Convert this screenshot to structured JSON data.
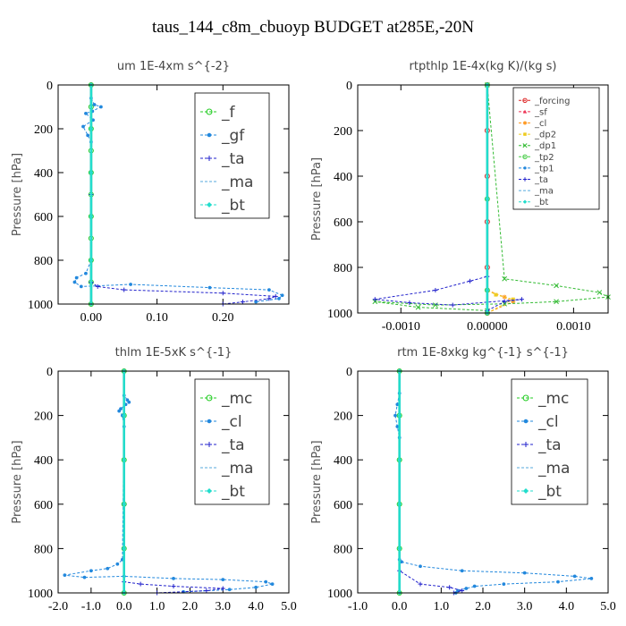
{
  "figure": {
    "title": "taus_144_c8m_cbuoyp  BUDGET at285E,-20N"
  },
  "chart_data": [
    {
      "type": "line",
      "title": "um  1E-4xm s^{-2}",
      "ylabel": "Pressure [hPa]",
      "xlim": [
        -0.05,
        0.3
      ],
      "ylim": [
        0,
        1000
      ],
      "xticks": [
        0.0,
        0.1,
        0.2
      ],
      "xtick_labels": [
        "0.00",
        "0.10",
        "0.20"
      ],
      "yticks": [
        0,
        200,
        400,
        600,
        800,
        1000
      ],
      "ytick_labels": [
        "0",
        "200",
        "400",
        "600",
        "800",
        "1000"
      ],
      "legend_position": "top-right",
      "legend_size": "large",
      "series": [
        {
          "name": "_f",
          "color": "#22cc22",
          "marker": "circle",
          "x": [
            0,
            0,
            0,
            0,
            0,
            0,
            0,
            0,
            0,
            0,
            0
          ],
          "y": [
            0,
            100,
            200,
            300,
            400,
            500,
            600,
            700,
            800,
            900,
            1000
          ]
        },
        {
          "name": "_gf",
          "color": "#2288dd",
          "marker": "dot",
          "x": [
            0,
            0,
            0.005,
            0.015,
            0.002,
            -0.008,
            0.003,
            -0.012,
            -0.005,
            0,
            0,
            0,
            -0.008,
            -0.022,
            -0.025,
            -0.015,
            0.06,
            0.18,
            0.27,
            0.29,
            0.285,
            0.25
          ],
          "y": [
            0,
            60,
            90,
            100,
            120,
            130,
            160,
            190,
            230,
            260,
            400,
            800,
            860,
            880,
            900,
            920,
            910,
            925,
            935,
            960,
            975,
            990
          ]
        },
        {
          "name": "_ta",
          "color": "#2222cc",
          "marker": "plus",
          "x": [
            0,
            0,
            0,
            0.01,
            0.05,
            0.2,
            0.28,
            0.27,
            0.23,
            0.2
          ],
          "y": [
            0,
            500,
            900,
            920,
            935,
            950,
            965,
            975,
            990,
            1000
          ]
        },
        {
          "name": "_ma",
          "color": "#55aadd",
          "marker": "none",
          "x": [
            0,
            0,
            0
          ],
          "y": [
            0,
            500,
            1000
          ]
        },
        {
          "name": "_bt",
          "color": "#22ddcc",
          "marker": "diamond",
          "x": [
            0,
            0,
            0,
            0,
            0,
            0
          ],
          "y": [
            0,
            200,
            400,
            600,
            800,
            1000
          ]
        }
      ]
    },
    {
      "type": "line",
      "title": "rtpthlp  1E-4x(kg K)/(kg s)",
      "ylabel": "Pressure [hPa]",
      "xlim": [
        -0.0015,
        0.0014
      ],
      "ylim": [
        0,
        1000
      ],
      "xticks": [
        -0.001,
        0.0,
        0.001
      ],
      "xtick_labels": [
        "-0.0010",
        "0.00000",
        "0.0010"
      ],
      "yticks": [
        0,
        200,
        400,
        600,
        800,
        1000
      ],
      "ytick_labels": [
        "0",
        "200",
        "400",
        "600",
        "800",
        "1000"
      ],
      "legend_position": "top-right",
      "legend_size": "small",
      "series": [
        {
          "name": "_forcing",
          "color": "#dd2222",
          "marker": "circle",
          "x": [
            0,
            0,
            0,
            0,
            0,
            0
          ],
          "y": [
            0,
            200,
            400,
            600,
            800,
            1000
          ]
        },
        {
          "name": "_sf",
          "color": "#ee3355",
          "marker": "triangle",
          "x": [
            0,
            0,
            0
          ],
          "y": [
            0,
            500,
            1000
          ]
        },
        {
          "name": "_cl",
          "color": "#ff9922",
          "marker": "star",
          "x": [
            0,
            0,
            0.0002,
            0.0003,
            0
          ],
          "y": [
            0,
            900,
            930,
            950,
            1000
          ]
        },
        {
          "name": "_dp2",
          "color": "#eecc22",
          "marker": "square",
          "x": [
            0,
            0,
            0.0001,
            0.0003,
            0
          ],
          "y": [
            0,
            900,
            920,
            940,
            1000
          ]
        },
        {
          "name": "_dp1",
          "color": "#33bb33",
          "marker": "cross",
          "x": [
            0,
            0.0002,
            0.0008,
            0.0013,
            0.0014,
            0.0008,
            0.0002,
            -0.0006,
            -0.0013,
            -0.0008,
            0
          ],
          "y": [
            0,
            850,
            880,
            910,
            930,
            950,
            960,
            965,
            950,
            975,
            990
          ]
        },
        {
          "name": "_tp2",
          "color": "#44cc44",
          "marker": "circle",
          "x": [
            0,
            0,
            0,
            0
          ],
          "y": [
            0,
            500,
            900,
            1000
          ]
        },
        {
          "name": "_tp1",
          "color": "#2288dd",
          "marker": "dot",
          "x": [
            0,
            0,
            0,
            0
          ],
          "y": [
            0,
            500,
            900,
            1000
          ]
        },
        {
          "name": "_ta",
          "color": "#2222cc",
          "marker": "plus",
          "x": [
            0,
            0,
            -0.0002,
            -0.0006,
            -0.0013,
            -0.0009,
            -0.0004,
            0.0004,
            0.0002,
            0
          ],
          "y": [
            0,
            840,
            860,
            900,
            940,
            955,
            965,
            940,
            950,
            990
          ]
        },
        {
          "name": "_ma",
          "color": "#55aadd",
          "marker": "none",
          "x": [
            0,
            0
          ],
          "y": [
            0,
            1000
          ]
        },
        {
          "name": "_bt",
          "color": "#22ddcc",
          "marker": "diamond",
          "x": [
            0,
            0,
            0,
            0
          ],
          "y": [
            0,
            500,
            900,
            1000
          ]
        }
      ]
    },
    {
      "type": "line",
      "title": "thlm  1E-5xK s^{-1}",
      "ylabel": "Pressure [hPa]",
      "xlim": [
        -2.0,
        5.0
      ],
      "ylim": [
        0,
        1000
      ],
      "xticks": [
        -2,
        -1,
        0,
        1,
        2,
        3,
        4,
        5
      ],
      "xtick_labels": [
        "-2.0",
        "-1.0",
        "0.0",
        "1.0",
        "2.0",
        "3.0",
        "4.0",
        "5.0"
      ],
      "yticks": [
        0,
        200,
        400,
        600,
        800,
        1000
      ],
      "ytick_labels": [
        "0",
        "200",
        "400",
        "600",
        "800",
        "1000"
      ],
      "legend_position": "top-right",
      "legend_size": "large",
      "series": [
        {
          "name": "_mc",
          "color": "#22cc22",
          "marker": "circle",
          "x": [
            0,
            0,
            0,
            0,
            0,
            0
          ],
          "y": [
            0,
            200,
            400,
            600,
            800,
            1000
          ]
        },
        {
          "name": "_cl",
          "color": "#2288dd",
          "marker": "dot",
          "x": [
            0,
            0,
            0.1,
            0.15,
            0.05,
            -0.1,
            -0.15,
            -0.05,
            0,
            -0.05,
            -0.2,
            -0.5,
            -1.0,
            -1.8,
            -1.2,
            0,
            1.5,
            3.0,
            4.3,
            4.5,
            4.0,
            3.2,
            1.8
          ],
          "y": [
            0,
            110,
            130,
            140,
            150,
            170,
            180,
            200,
            250,
            850,
            870,
            890,
            900,
            920,
            930,
            925,
            935,
            940,
            950,
            960,
            975,
            985,
            995
          ]
        },
        {
          "name": "_ta",
          "color": "#2222cc",
          "marker": "plus",
          "x": [
            0,
            0,
            0,
            0.5,
            1.5,
            3,
            2.5,
            1.0
          ],
          "y": [
            0,
            600,
            950,
            960,
            970,
            980,
            990,
            1000
          ]
        },
        {
          "name": "_ma",
          "color": "#55aadd",
          "marker": "none",
          "x": [
            0,
            0
          ],
          "y": [
            0,
            1000
          ]
        },
        {
          "name": "_bt",
          "color": "#22ddcc",
          "marker": "diamond",
          "x": [
            0,
            0,
            0,
            0,
            0,
            0
          ],
          "y": [
            0,
            200,
            400,
            600,
            800,
            1000
          ]
        }
      ]
    },
    {
      "type": "line",
      "title": "rtm  1E-8xkg kg^{-1} s^{-1}",
      "ylabel": "Pressure [hPa]",
      "xlim": [
        -1.0,
        5.0
      ],
      "ylim": [
        0,
        1000
      ],
      "xticks": [
        -1,
        0,
        1,
        2,
        3,
        4,
        5
      ],
      "xtick_labels": [
        "-1.0",
        "0.0",
        "1.0",
        "2.0",
        "3.0",
        "4.0",
        "5.0"
      ],
      "yticks": [
        0,
        200,
        400,
        600,
        800,
        1000
      ],
      "ytick_labels": [
        "0",
        "200",
        "400",
        "600",
        "800",
        "1000"
      ],
      "legend_position": "top-right",
      "legend_size": "large",
      "series": [
        {
          "name": "_mc",
          "color": "#22cc22",
          "marker": "circle",
          "x": [
            0,
            0,
            0,
            0,
            0,
            0
          ],
          "y": [
            0,
            200,
            400,
            600,
            800,
            1000
          ]
        },
        {
          "name": "_cl",
          "color": "#2288dd",
          "marker": "dot",
          "x": [
            0,
            0,
            -0.05,
            -0.1,
            -0.05,
            0,
            0,
            0.05,
            0.5,
            1.5,
            3.0,
            4.2,
            4.6,
            3.8,
            2.5,
            1.8,
            1.6,
            1.4,
            1.35
          ],
          "y": [
            0,
            100,
            150,
            200,
            250,
            300,
            850,
            860,
            880,
            900,
            910,
            925,
            935,
            950,
            960,
            970,
            980,
            990,
            1000
          ]
        },
        {
          "name": "_ta",
          "color": "#2222cc",
          "marker": "plus",
          "x": [
            0,
            0,
            0.5,
            1.2,
            1.5,
            1.3
          ],
          "y": [
            0,
            900,
            960,
            975,
            990,
            1000
          ]
        },
        {
          "name": "_ma",
          "color": "#55aadd",
          "marker": "none",
          "x": [
            0,
            0
          ],
          "y": [
            0,
            1000
          ]
        },
        {
          "name": "_bt",
          "color": "#22ddcc",
          "marker": "diamond",
          "x": [
            0,
            0,
            0,
            0,
            0,
            0
          ],
          "y": [
            0,
            200,
            400,
            600,
            800,
            1000
          ]
        }
      ]
    }
  ]
}
